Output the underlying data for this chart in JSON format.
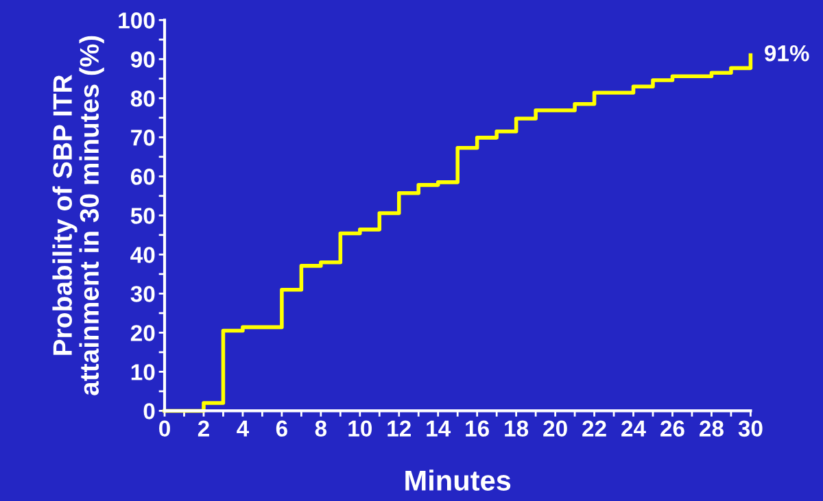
{
  "chart_data": {
    "type": "step",
    "xlabel": "Minutes",
    "ylabel": "Probability of SBP ITR\nattainment in 30 minutes (%)",
    "x": [
      0,
      2,
      3,
      4,
      6,
      7,
      8,
      9,
      10,
      11,
      12,
      13,
      14,
      15,
      16,
      17,
      18,
      19,
      21,
      22,
      24,
      25,
      26,
      28,
      29,
      30
    ],
    "values": [
      0,
      2,
      20.5,
      21.4,
      31,
      37.1,
      38,
      45.4,
      46.4,
      50.6,
      55.7,
      57.8,
      58.5,
      67.3,
      69.9,
      71.5,
      74.8,
      76.9,
      78.5,
      81.4,
      83,
      84.6,
      85.6,
      86.5,
      87.7,
      91
    ],
    "color": "#ffff00",
    "annotations": [
      {
        "text": "91%",
        "x": 30,
        "y": 91
      }
    ],
    "xlim": [
      0,
      30
    ],
    "ylim": [
      0,
      100
    ],
    "xticks": [
      0,
      {
        "value": 1,
        "label": null
      },
      2,
      {
        "value": 3,
        "label": null
      },
      4,
      {
        "value": 5,
        "label": null
      },
      6,
      {
        "value": 7,
        "label": null
      },
      8,
      {
        "value": 9,
        "label": null
      },
      10,
      {
        "value": 11,
        "label": null
      },
      12,
      {
        "value": 13,
        "label": null
      },
      14,
      {
        "value": 15,
        "label": null
      },
      16,
      {
        "value": 17,
        "label": null
      },
      18,
      {
        "value": 19,
        "label": null
      },
      20,
      {
        "value": 21,
        "label": null
      },
      22,
      {
        "value": 23,
        "label": null
      },
      24,
      {
        "value": 25,
        "label": null
      },
      26,
      {
        "value": 27,
        "label": null
      },
      28,
      {
        "value": 29,
        "label": null
      },
      30
    ],
    "yticks": [
      0,
      {
        "value": 5,
        "label": null
      },
      10,
      {
        "value": 15,
        "label": null
      },
      20,
      {
        "value": 25,
        "label": null
      },
      30,
      {
        "value": 35,
        "label": null
      },
      40,
      {
        "value": 45,
        "label": null
      },
      50,
      {
        "value": 55,
        "label": null
      },
      60,
      {
        "value": 65,
        "label": null
      },
      70,
      {
        "value": 75,
        "label": null
      },
      80,
      {
        "value": 85,
        "label": null
      },
      90,
      {
        "value": 95,
        "label": null
      },
      100
    ],
    "grid": false,
    "legend": false
  }
}
